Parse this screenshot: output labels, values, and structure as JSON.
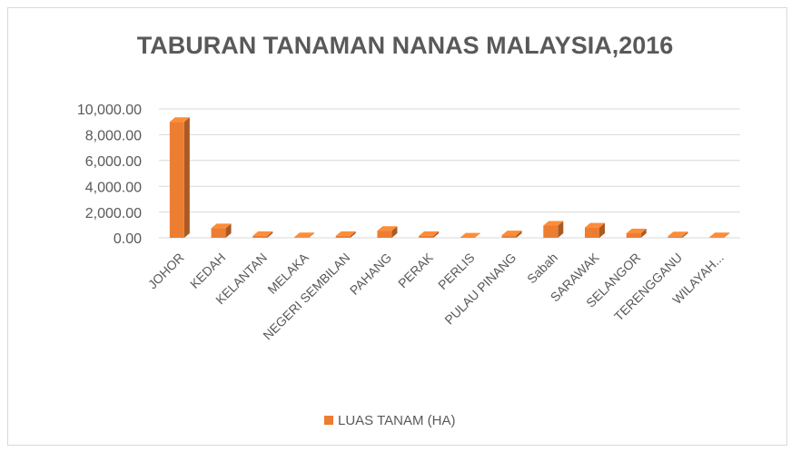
{
  "chart_data": {
    "type": "bar3d",
    "title": "TABURAN TANAMAN NANAS MALAYSIA,2016",
    "categories": [
      "JOHOR",
      "KEDAH",
      "KELANTAN",
      "MELAKA",
      "NEGERI SEMBILAN",
      "PAHANG",
      "PERAK",
      "PERLIS",
      "PULAU PINANG",
      "Sabah",
      "SARAWAK",
      "SELANGOR",
      "TERENGGANU",
      "WILAYAH..."
    ],
    "series": [
      {
        "name": "LUAS TANAM (HA)",
        "color": "#ed7d31",
        "values": [
          9000,
          750,
          150,
          50,
          150,
          550,
          150,
          30,
          200,
          950,
          800,
          350,
          120,
          50
        ]
      }
    ],
    "ylim": [
      0,
      10000
    ],
    "yticks": [
      {
        "value": 0,
        "label": "0.00"
      },
      {
        "value": 2000,
        "label": "2,000.00"
      },
      {
        "value": 4000,
        "label": "4,000.00"
      },
      {
        "value": 6000,
        "label": "6,000.00"
      },
      {
        "value": 8000,
        "label": "8,000.00"
      },
      {
        "value": 10000,
        "label": "10,000.00"
      }
    ],
    "grid": true,
    "legend": "bottom"
  }
}
